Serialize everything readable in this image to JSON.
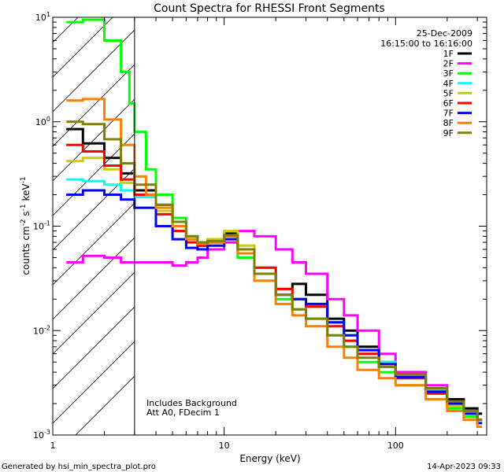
{
  "chart_data": {
    "type": "line",
    "title": "Count Spectra for RHESSI Front Segments",
    "xlabel": "Energy (keV)",
    "ylabel_parts": {
      "main": "counts cm",
      "sup1": "-2",
      "mid": " s",
      "sup2": "-1",
      "tail": " keV",
      "sup3": "-1"
    },
    "x_scale": "log",
    "y_scale": "log",
    "xlim": [
      1,
      340
    ],
    "ylim": [
      0.001,
      10
    ],
    "x_ticks": [
      {
        "value": 1,
        "label": "1"
      },
      {
        "value": 10,
        "label": "10"
      },
      {
        "value": 100,
        "label": "100"
      }
    ],
    "y_ticks": [
      {
        "value": 0.001,
        "base": "10",
        "exp": "-3"
      },
      {
        "value": 0.01,
        "base": "10",
        "exp": "-2"
      },
      {
        "value": 0.1,
        "base": "10",
        "exp": "-1"
      },
      {
        "value": 1,
        "base": "10",
        "exp": "0"
      },
      {
        "value": 10,
        "base": "10",
        "exp": "1"
      }
    ],
    "excluded_region_below_keV": 3,
    "date": "25-Dec-2009",
    "time_range": "16:15:00 to 16:16:00",
    "annotations": [
      "Includes Background",
      "Att A0, FDecim 1"
    ],
    "series": [
      {
        "name": "1F",
        "color": "#000000",
        "points": [
          [
            1.2,
            0.85
          ],
          [
            1.5,
            0.62
          ],
          [
            2,
            0.45
          ],
          [
            2.5,
            0.32
          ],
          [
            3,
            0.22
          ],
          [
            4,
            0.16
          ],
          [
            5,
            0.1
          ],
          [
            6,
            0.075
          ],
          [
            7,
            0.065
          ],
          [
            8,
            0.07
          ],
          [
            10,
            0.085
          ],
          [
            12,
            0.06
          ],
          [
            15,
            0.035
          ],
          [
            20,
            0.025
          ],
          [
            25,
            0.028
          ],
          [
            30,
            0.022
          ],
          [
            40,
            0.013
          ],
          [
            50,
            0.01
          ],
          [
            60,
            0.007
          ],
          [
            80,
            0.005
          ],
          [
            100,
            0.004
          ],
          [
            150,
            0.0028
          ],
          [
            200,
            0.0022
          ],
          [
            250,
            0.0018
          ],
          [
            300,
            0.0016
          ]
        ]
      },
      {
        "name": "2F",
        "color": "#ff00ff",
        "points": [
          [
            1.2,
            0.045
          ],
          [
            1.5,
            0.052
          ],
          [
            2,
            0.05
          ],
          [
            2.5,
            0.045
          ],
          [
            3,
            0.045
          ],
          [
            4,
            0.045
          ],
          [
            5,
            0.042
          ],
          [
            6,
            0.045
          ],
          [
            7,
            0.05
          ],
          [
            8,
            0.06
          ],
          [
            10,
            0.07
          ],
          [
            12,
            0.09
          ],
          [
            15,
            0.08
          ],
          [
            20,
            0.06
          ],
          [
            25,
            0.045
          ],
          [
            30,
            0.035
          ],
          [
            40,
            0.02
          ],
          [
            50,
            0.014
          ],
          [
            60,
            0.01
          ],
          [
            80,
            0.006
          ],
          [
            100,
            0.004
          ],
          [
            150,
            0.003
          ],
          [
            200,
            0.002
          ],
          [
            250,
            0.0017
          ],
          [
            300,
            0.0014
          ]
        ]
      },
      {
        "name": "3F",
        "color": "#00ff00",
        "points": [
          [
            1.2,
            9
          ],
          [
            1.5,
            9.5
          ],
          [
            2,
            6
          ],
          [
            2.5,
            3
          ],
          [
            2.8,
            1.5
          ],
          [
            3,
            0.8
          ],
          [
            3.5,
            0.35
          ],
          [
            4,
            0.2
          ],
          [
            5,
            0.12
          ],
          [
            6,
            0.08
          ],
          [
            7,
            0.07
          ],
          [
            8,
            0.075
          ],
          [
            10,
            0.08
          ],
          [
            12,
            0.05
          ],
          [
            15,
            0.03
          ],
          [
            20,
            0.02
          ],
          [
            25,
            0.016
          ],
          [
            30,
            0.013
          ],
          [
            40,
            0.009
          ],
          [
            50,
            0.007
          ],
          [
            60,
            0.005
          ],
          [
            80,
            0.004
          ],
          [
            100,
            0.003
          ],
          [
            150,
            0.0025
          ],
          [
            200,
            0.0018
          ],
          [
            250,
            0.0015
          ],
          [
            300,
            0.0013
          ]
        ]
      },
      {
        "name": "4F",
        "color": "#00ffff",
        "points": [
          [
            1.2,
            0.28
          ],
          [
            1.5,
            0.27
          ],
          [
            2,
            0.25
          ],
          [
            2.5,
            0.22
          ],
          [
            3,
            0.19
          ],
          [
            4,
            0.13
          ],
          [
            5,
            0.1
          ],
          [
            6,
            0.08
          ],
          [
            7,
            0.07
          ],
          [
            8,
            0.07
          ],
          [
            10,
            0.08
          ],
          [
            12,
            0.055
          ],
          [
            15,
            0.035
          ],
          [
            20,
            0.022
          ],
          [
            25,
            0.02
          ],
          [
            30,
            0.018
          ],
          [
            40,
            0.012
          ],
          [
            50,
            0.009
          ],
          [
            60,
            0.0065
          ],
          [
            80,
            0.005
          ],
          [
            100,
            0.0038
          ],
          [
            150,
            0.0027
          ],
          [
            200,
            0.002
          ],
          [
            250,
            0.0017
          ],
          [
            300,
            0.0014
          ]
        ]
      },
      {
        "name": "5F",
        "color": "#cccc00",
        "points": [
          [
            1.2,
            0.42
          ],
          [
            1.5,
            0.45
          ],
          [
            2,
            0.35
          ],
          [
            2.5,
            0.26
          ],
          [
            3,
            0.2
          ],
          [
            4,
            0.14
          ],
          [
            5,
            0.1
          ],
          [
            6,
            0.075
          ],
          [
            7,
            0.07
          ],
          [
            8,
            0.075
          ],
          [
            10,
            0.09
          ],
          [
            12,
            0.065
          ],
          [
            15,
            0.04
          ],
          [
            20,
            0.025
          ],
          [
            25,
            0.02
          ],
          [
            30,
            0.017
          ],
          [
            40,
            0.011
          ],
          [
            50,
            0.008
          ],
          [
            60,
            0.006
          ],
          [
            80,
            0.0045
          ],
          [
            100,
            0.0035
          ],
          [
            150,
            0.0026
          ],
          [
            200,
            0.0019
          ],
          [
            250,
            0.0016
          ],
          [
            300,
            0.0013
          ]
        ]
      },
      {
        "name": "6F",
        "color": "#ff0000",
        "points": [
          [
            1.2,
            0.6
          ],
          [
            1.5,
            0.52
          ],
          [
            2,
            0.38
          ],
          [
            2.5,
            0.28
          ],
          [
            3,
            0.2
          ],
          [
            4,
            0.13
          ],
          [
            5,
            0.09
          ],
          [
            6,
            0.07
          ],
          [
            7,
            0.065
          ],
          [
            8,
            0.07
          ],
          [
            10,
            0.08
          ],
          [
            12,
            0.06
          ],
          [
            15,
            0.04
          ],
          [
            20,
            0.025
          ],
          [
            25,
            0.02
          ],
          [
            30,
            0.017
          ],
          [
            40,
            0.011
          ],
          [
            50,
            0.008
          ],
          [
            60,
            0.006
          ],
          [
            80,
            0.0045
          ],
          [
            100,
            0.0035
          ],
          [
            150,
            0.0025
          ],
          [
            200,
            0.002
          ],
          [
            250,
            0.0017
          ],
          [
            300,
            0.0014
          ]
        ]
      },
      {
        "name": "7F",
        "color": "#0000ff",
        "points": [
          [
            1.2,
            0.2
          ],
          [
            1.5,
            0.22
          ],
          [
            2,
            0.2
          ],
          [
            2.5,
            0.18
          ],
          [
            3,
            0.15
          ],
          [
            4,
            0.1
          ],
          [
            5,
            0.075
          ],
          [
            6,
            0.062
          ],
          [
            7,
            0.06
          ],
          [
            8,
            0.065
          ],
          [
            10,
            0.075
          ],
          [
            12,
            0.055
          ],
          [
            15,
            0.035
          ],
          [
            20,
            0.022
          ],
          [
            25,
            0.02
          ],
          [
            30,
            0.018
          ],
          [
            40,
            0.012
          ],
          [
            50,
            0.009
          ],
          [
            60,
            0.0065
          ],
          [
            80,
            0.0048
          ],
          [
            100,
            0.0036
          ],
          [
            150,
            0.0026
          ],
          [
            200,
            0.002
          ],
          [
            250,
            0.0016
          ],
          [
            300,
            0.0013
          ]
        ]
      },
      {
        "name": "8F",
        "color": "#ff8000",
        "points": [
          [
            1.2,
            1.6
          ],
          [
            1.5,
            1.65
          ],
          [
            2,
            1.05
          ],
          [
            2.5,
            0.6
          ],
          [
            3,
            0.3
          ],
          [
            3.5,
            0.2
          ],
          [
            4,
            0.15
          ],
          [
            5,
            0.1
          ],
          [
            6,
            0.075
          ],
          [
            7,
            0.068
          ],
          [
            8,
            0.07
          ],
          [
            10,
            0.08
          ],
          [
            12,
            0.055
          ],
          [
            15,
            0.03
          ],
          [
            20,
            0.018
          ],
          [
            25,
            0.014
          ],
          [
            30,
            0.011
          ],
          [
            40,
            0.007
          ],
          [
            50,
            0.0055
          ],
          [
            60,
            0.0042
          ],
          [
            80,
            0.0035
          ],
          [
            100,
            0.003
          ],
          [
            150,
            0.0022
          ],
          [
            200,
            0.0017
          ],
          [
            250,
            0.0014
          ],
          [
            300,
            0.0012
          ]
        ]
      },
      {
        "name": "9F",
        "color": "#808000",
        "points": [
          [
            1.2,
            1.0
          ],
          [
            1.5,
            0.95
          ],
          [
            2,
            0.68
          ],
          [
            2.5,
            0.4
          ],
          [
            3,
            0.25
          ],
          [
            4,
            0.16
          ],
          [
            5,
            0.11
          ],
          [
            6,
            0.08
          ],
          [
            7,
            0.07
          ],
          [
            8,
            0.072
          ],
          [
            10,
            0.082
          ],
          [
            12,
            0.06
          ],
          [
            15,
            0.035
          ],
          [
            20,
            0.022
          ],
          [
            25,
            0.016
          ],
          [
            30,
            0.013
          ],
          [
            40,
            0.009
          ],
          [
            50,
            0.007
          ],
          [
            60,
            0.0055
          ],
          [
            80,
            0.0045
          ],
          [
            100,
            0.0038
          ],
          [
            150,
            0.0028
          ],
          [
            200,
            0.0021
          ],
          [
            250,
            0.0017
          ],
          [
            300,
            0.0014
          ]
        ]
      }
    ]
  },
  "footer": {
    "generated_by": "Generated by hsi_min_spectra_plot.pro",
    "timestamp": "14-Apr-2023 09:33"
  }
}
